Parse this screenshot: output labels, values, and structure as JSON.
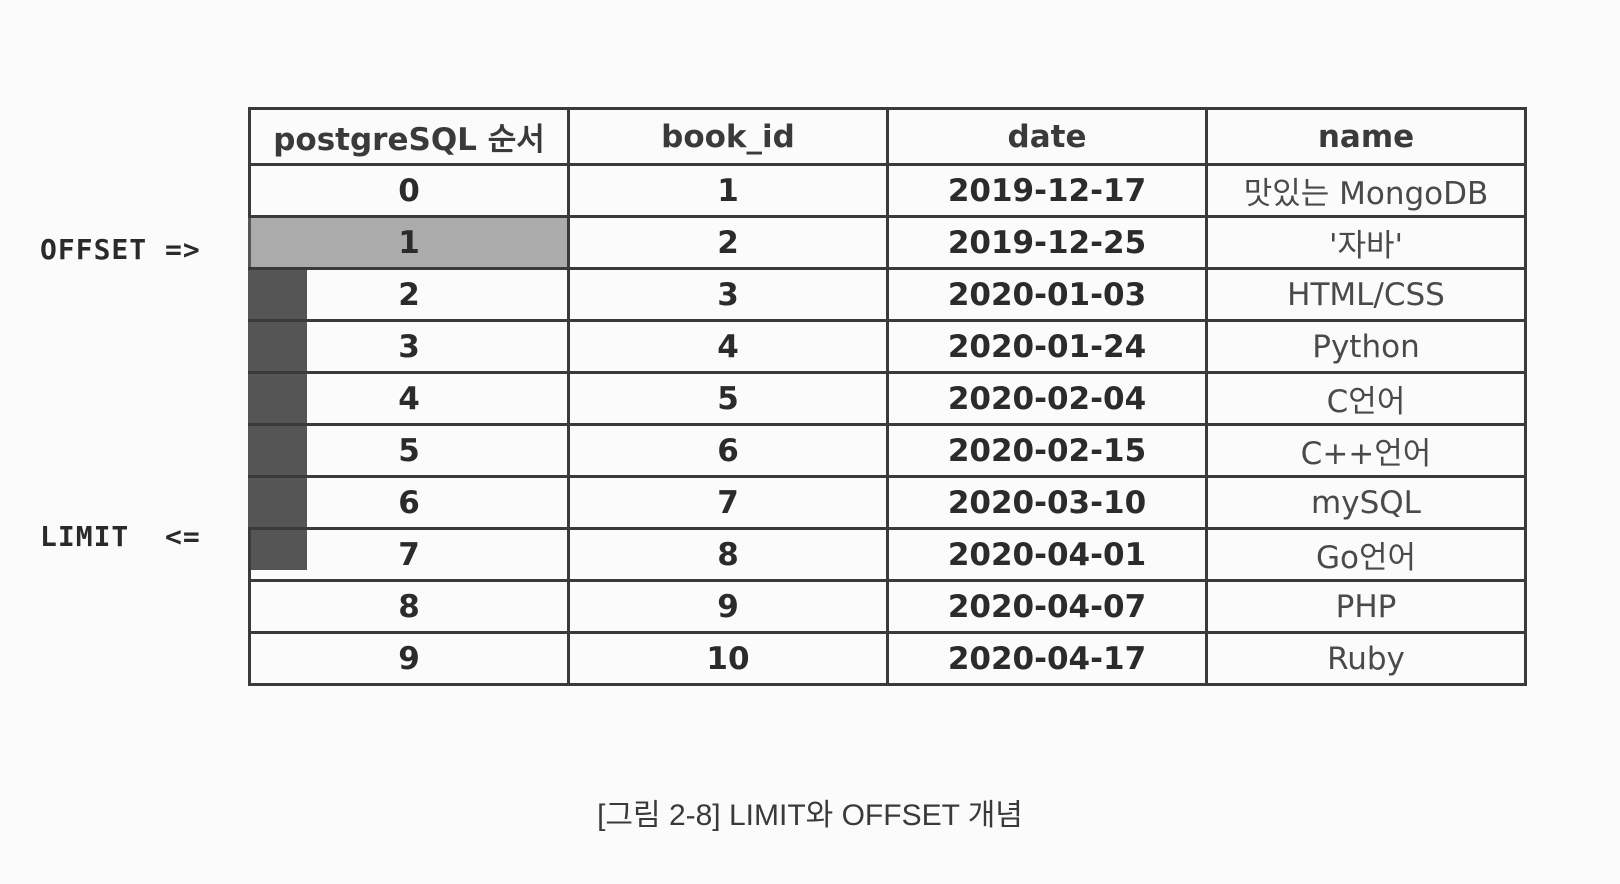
{
  "labels": {
    "offset": "OFFSET =>",
    "limit": "LIMIT  <="
  },
  "table": {
    "headers": [
      "postgreSQL 순서",
      "book_id",
      "date",
      "name"
    ],
    "rows": [
      {
        "order": "0",
        "book_id": "1",
        "date": "2019-12-17",
        "name": "맛있는 MongoDB"
      },
      {
        "order": "1",
        "book_id": "2",
        "date": "2019-12-25",
        "name": "'자바'"
      },
      {
        "order": "2",
        "book_id": "3",
        "date": "2020-01-03",
        "name": "HTML/CSS"
      },
      {
        "order": "3",
        "book_id": "4",
        "date": "2020-01-24",
        "name": "Python"
      },
      {
        "order": "4",
        "book_id": "5",
        "date": "2020-02-04",
        "name": "C언어"
      },
      {
        "order": "5",
        "book_id": "6",
        "date": "2020-02-15",
        "name": "C++언어"
      },
      {
        "order": "6",
        "book_id": "7",
        "date": "2020-03-10",
        "name": "mySQL"
      },
      {
        "order": "7",
        "book_id": "8",
        "date": "2020-04-01",
        "name": "Go언어"
      },
      {
        "order": "8",
        "book_id": "9",
        "date": "2020-04-07",
        "name": "PHP"
      },
      {
        "order": "9",
        "book_id": "10",
        "date": "2020-04-17",
        "name": "Ruby"
      }
    ]
  },
  "highlight": {
    "offset_row": 1,
    "limit_rows": [
      1,
      2,
      3,
      4,
      5,
      6
    ]
  },
  "colors": {
    "limit_bar": "#555555",
    "offset_cell": "#ababab"
  },
  "caption": "[그림 2-8] LIMIT와 OFFSET 개념"
}
